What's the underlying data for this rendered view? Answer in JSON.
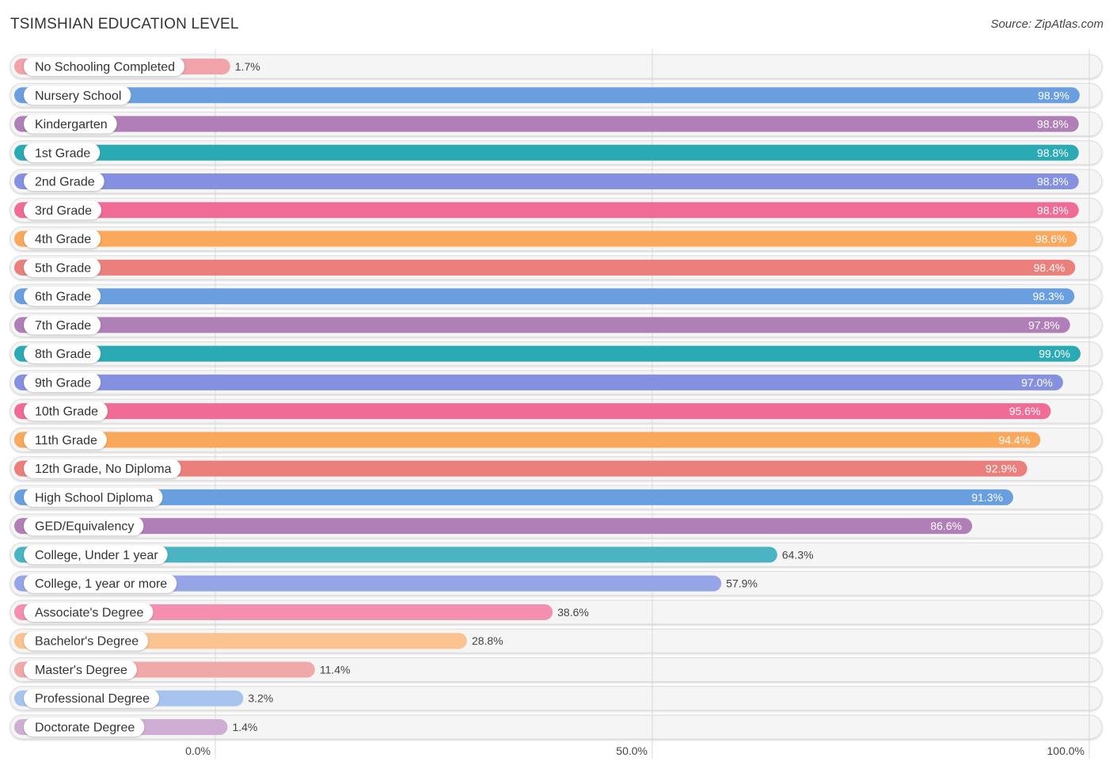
{
  "header": {
    "title": "TSIMSHIAN EDUCATION LEVEL",
    "source": "Source: ZipAtlas.com"
  },
  "chart_data": {
    "type": "bar",
    "orientation": "horizontal",
    "title": "TSIMSHIAN EDUCATION LEVEL",
    "xlabel": "",
    "ylabel": "",
    "xlim": [
      0,
      100
    ],
    "unit": "%",
    "grid": true,
    "ticks": [
      {
        "value": 0,
        "label": "0.0%"
      },
      {
        "value": 50,
        "label": "50.0%"
      },
      {
        "value": 100,
        "label": "100.0%"
      }
    ],
    "categories": [
      "No Schooling Completed",
      "Nursery School",
      "Kindergarten",
      "1st Grade",
      "2nd Grade",
      "3rd Grade",
      "4th Grade",
      "5th Grade",
      "6th Grade",
      "7th Grade",
      "8th Grade",
      "9th Grade",
      "10th Grade",
      "11th Grade",
      "12th Grade, No Diploma",
      "High School Diploma",
      "GED/Equivalency",
      "College, Under 1 year",
      "College, 1 year or more",
      "Associate's Degree",
      "Bachelor's Degree",
      "Master's Degree",
      "Professional Degree",
      "Doctorate Degree"
    ],
    "values": [
      1.7,
      98.9,
      98.8,
      98.8,
      98.8,
      98.8,
      98.6,
      98.4,
      98.3,
      97.8,
      99.0,
      97.0,
      95.6,
      94.4,
      92.9,
      91.3,
      86.6,
      64.3,
      57.9,
      38.6,
      28.8,
      11.4,
      3.2,
      1.4
    ],
    "value_labels": [
      "1.7%",
      "98.9%",
      "98.8%",
      "98.8%",
      "98.8%",
      "98.8%",
      "98.6%",
      "98.4%",
      "98.3%",
      "97.8%",
      "99.0%",
      "97.0%",
      "95.6%",
      "94.4%",
      "92.9%",
      "91.3%",
      "86.6%",
      "64.3%",
      "57.9%",
      "38.6%",
      "28.8%",
      "11.4%",
      "3.2%",
      "1.4%"
    ],
    "colors": [
      "#f0a3a8",
      "#6a9fdf",
      "#b07fb8",
      "#2aaab5",
      "#8591e0",
      "#f06b95",
      "#f9a85c",
      "#eb7f7b",
      "#6a9fdf",
      "#b07fb8",
      "#2aaab5",
      "#8591e0",
      "#f06b95",
      "#f9a85c",
      "#eb7f7b",
      "#6a9fdf",
      "#b07fb8",
      "#4ab4c2",
      "#95a5e8",
      "#f48fb0",
      "#fac38f",
      "#eea9a8",
      "#a6c4ee",
      "#cfaed3"
    ]
  }
}
